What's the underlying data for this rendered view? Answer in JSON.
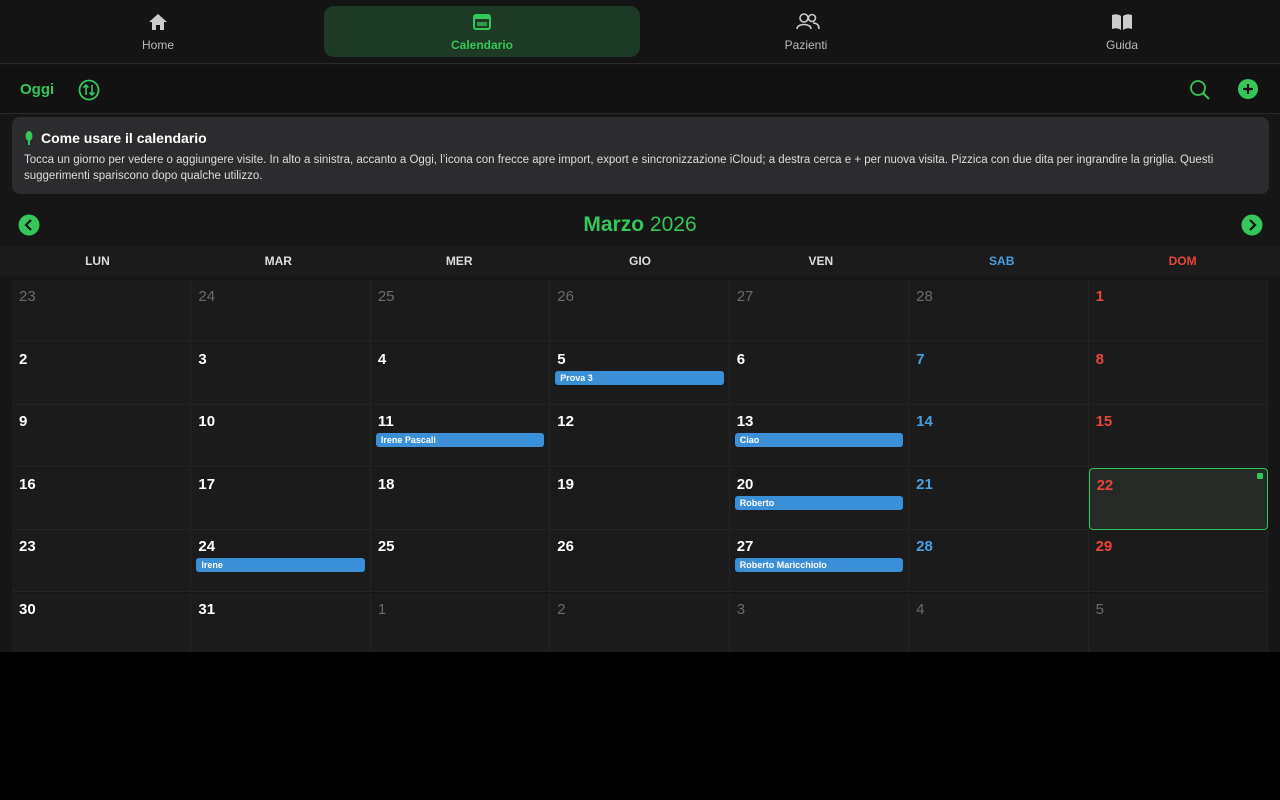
{
  "tabs": [
    {
      "label": "Home"
    },
    {
      "label": "Calendario",
      "active": true
    },
    {
      "label": "Pazienti"
    },
    {
      "label": "Guida"
    }
  ],
  "toolbar": {
    "today": "Oggi"
  },
  "tip": {
    "title": "Come usare il calendario",
    "body": "Tocca un giorno per vedere o aggiungere visite. In alto a sinistra, accanto a Oggi, l’icona con frecce apre import, export e sincronizzazione iCloud; a destra cerca e + per nuova visita. Pizzica con due dita per ingrandire la griglia. Questi suggerimenti spariscono dopo qualche utilizzo."
  },
  "month": {
    "name": "Marzo",
    "year": "2026"
  },
  "weekdays": [
    "LUN",
    "MAR",
    "MER",
    "GIO",
    "VEN",
    "SAB",
    "DOM"
  ],
  "weeks": [
    [
      {
        "day": 23,
        "other_month": true
      },
      {
        "day": 24,
        "other_month": true
      },
      {
        "day": 25,
        "other_month": true
      },
      {
        "day": 26,
        "other_month": true
      },
      {
        "day": 27,
        "other_month": true
      },
      {
        "day": 28,
        "other_month": true
      },
      {
        "day": 1
      }
    ],
    [
      {
        "day": 2
      },
      {
        "day": 3
      },
      {
        "day": 4
      },
      {
        "day": 5,
        "events": [
          "Prova 3"
        ]
      },
      {
        "day": 6
      },
      {
        "day": 7
      },
      {
        "day": 8
      }
    ],
    [
      {
        "day": 9
      },
      {
        "day": 10
      },
      {
        "day": 11,
        "events": [
          "Irene Pascali"
        ]
      },
      {
        "day": 12
      },
      {
        "day": 13,
        "events": [
          "Ciao"
        ]
      },
      {
        "day": 14
      },
      {
        "day": 15
      }
    ],
    [
      {
        "day": 16
      },
      {
        "day": 17
      },
      {
        "day": 18
      },
      {
        "day": 19
      },
      {
        "day": 20,
        "events": [
          "Roberto"
        ]
      },
      {
        "day": 21
      },
      {
        "day": 22,
        "today": true
      }
    ],
    [
      {
        "day": 23
      },
      {
        "day": 24,
        "events": [
          "Irene"
        ]
      },
      {
        "day": 25
      },
      {
        "day": 26
      },
      {
        "day": 27,
        "events": [
          "Roberto Maricchiolo"
        ]
      },
      {
        "day": 28
      },
      {
        "day": 29
      }
    ],
    [
      {
        "day": 30
      },
      {
        "day": 31
      },
      {
        "day": 1,
        "other_month": true
      },
      {
        "day": 2,
        "other_month": true
      },
      {
        "day": 3,
        "other_month": true
      },
      {
        "day": 4,
        "other_month": true
      },
      {
        "day": 5,
        "other_month": true
      }
    ]
  ]
}
